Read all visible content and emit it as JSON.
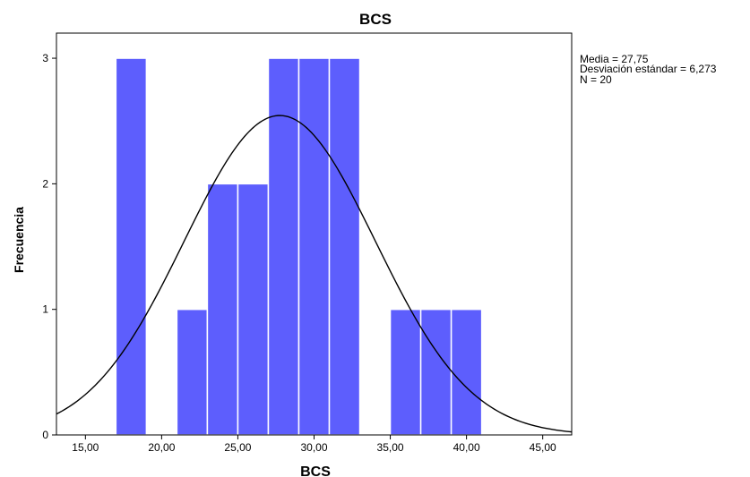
{
  "chart_data": {
    "type": "bar",
    "subtype": "histogram",
    "title": "BCS",
    "xlabel": "BCS",
    "ylabel": "Frecuencia",
    "xlim": [
      13.1,
      46.9
    ],
    "ylim": [
      0,
      3.2
    ],
    "bin_width": 2,
    "bins": [
      {
        "start": 17,
        "end": 19,
        "count": 3
      },
      {
        "start": 21,
        "end": 23,
        "count": 1
      },
      {
        "start": 23,
        "end": 25,
        "count": 2
      },
      {
        "start": 25,
        "end": 27,
        "count": 2
      },
      {
        "start": 27,
        "end": 29,
        "count": 3
      },
      {
        "start": 29,
        "end": 31,
        "count": 3
      },
      {
        "start": 31,
        "end": 33,
        "count": 3
      },
      {
        "start": 35,
        "end": 37,
        "count": 1
      },
      {
        "start": 37,
        "end": 39,
        "count": 1
      },
      {
        "start": 39,
        "end": 41,
        "count": 1
      }
    ],
    "x_ticks": [
      {
        "value": 15,
        "label": "15,00"
      },
      {
        "value": 20,
        "label": "20,00"
      },
      {
        "value": 25,
        "label": "25,00"
      },
      {
        "value": 30,
        "label": "30,00"
      },
      {
        "value": 35,
        "label": "35,00"
      },
      {
        "value": 40,
        "label": "40,00"
      },
      {
        "value": 45,
        "label": "45,00"
      }
    ],
    "y_ticks": [
      {
        "value": 0,
        "label": "0"
      },
      {
        "value": 1,
        "label": "1"
      },
      {
        "value": 2,
        "label": "2"
      },
      {
        "value": 3,
        "label": "3"
      }
    ],
    "normal_curve": {
      "mean": 27.75,
      "sd": 6.273,
      "n": 20
    },
    "stats": {
      "mean_label": "Media = 27,75",
      "sd_label": "Desviación estándar = 6,273",
      "n_label": "N = 20"
    },
    "colors": {
      "bar_fill": "#5d5efd",
      "bar_stroke": "#ffffff",
      "curve": "#000000",
      "axis": "#000000"
    },
    "grid": false,
    "legend": "none"
  }
}
